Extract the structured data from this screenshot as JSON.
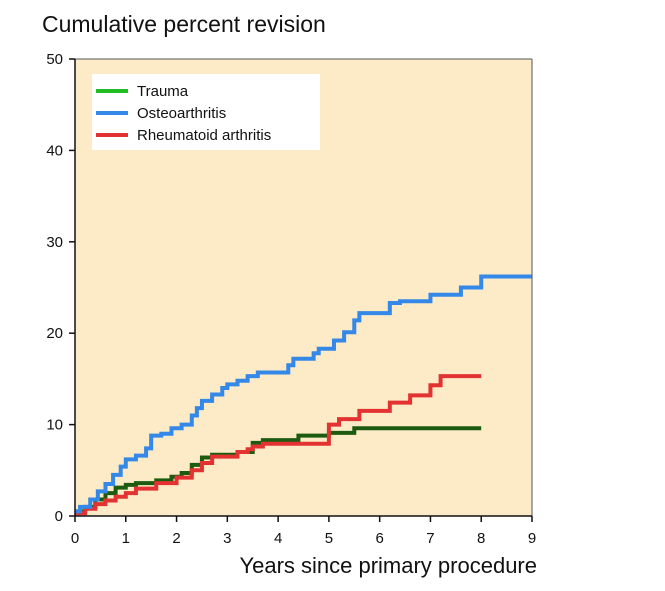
{
  "chart_data": {
    "type": "line",
    "title": "Cumulative percent revision",
    "xlabel": "Years since primary procedure",
    "ylabel": "",
    "xlim": [
      0,
      9
    ],
    "ylim": [
      0,
      50
    ],
    "x_ticks": [
      0,
      1,
      2,
      3,
      4,
      5,
      6,
      7,
      8,
      9
    ],
    "y_ticks": [
      0,
      10,
      20,
      30,
      40,
      50
    ],
    "legend_position": "top-left",
    "plot_background": "#fdebc8",
    "series": [
      {
        "name": "Trauma",
        "color": "#1d5c10",
        "legend_color": "#22bb22",
        "step": true,
        "points": [
          [
            0,
            0.5
          ],
          [
            0.2,
            1.0
          ],
          [
            0.4,
            1.8
          ],
          [
            0.6,
            2.5
          ],
          [
            0.8,
            3.1
          ],
          [
            1.0,
            3.4
          ],
          [
            1.2,
            3.6
          ],
          [
            1.6,
            3.9
          ],
          [
            1.9,
            4.3
          ],
          [
            2.1,
            4.7
          ],
          [
            2.3,
            5.6
          ],
          [
            2.5,
            6.4
          ],
          [
            2.7,
            6.7
          ],
          [
            3.2,
            7.0
          ],
          [
            3.5,
            8.0
          ],
          [
            3.7,
            8.3
          ],
          [
            4.4,
            8.8
          ],
          [
            5.0,
            9.1
          ],
          [
            5.5,
            9.6
          ],
          [
            8.0,
            9.6
          ]
        ]
      },
      {
        "name": "Osteoarthritis",
        "color": "#3388e8",
        "legend_color": "#3388e8",
        "step": true,
        "points": [
          [
            0,
            0.5
          ],
          [
            0.1,
            1.0
          ],
          [
            0.3,
            1.8
          ],
          [
            0.45,
            2.7
          ],
          [
            0.6,
            3.5
          ],
          [
            0.75,
            4.5
          ],
          [
            0.9,
            5.4
          ],
          [
            1.0,
            6.2
          ],
          [
            1.2,
            6.6
          ],
          [
            1.4,
            7.4
          ],
          [
            1.5,
            8.8
          ],
          [
            1.7,
            9.0
          ],
          [
            1.9,
            9.6
          ],
          [
            2.1,
            10.0
          ],
          [
            2.3,
            11.0
          ],
          [
            2.4,
            11.8
          ],
          [
            2.5,
            12.6
          ],
          [
            2.7,
            13.3
          ],
          [
            2.9,
            14.0
          ],
          [
            3.0,
            14.4
          ],
          [
            3.2,
            14.8
          ],
          [
            3.4,
            15.3
          ],
          [
            3.6,
            15.7
          ],
          [
            4.2,
            16.5
          ],
          [
            4.3,
            17.2
          ],
          [
            4.7,
            17.8
          ],
          [
            4.8,
            18.3
          ],
          [
            5.1,
            19.2
          ],
          [
            5.3,
            20.1
          ],
          [
            5.5,
            21.4
          ],
          [
            5.6,
            22.2
          ],
          [
            6.2,
            23.3
          ],
          [
            6.4,
            23.5
          ],
          [
            7.0,
            24.2
          ],
          [
            7.6,
            25.0
          ],
          [
            8.0,
            26.2
          ],
          [
            9.0,
            26.2
          ]
        ]
      },
      {
        "name": "Rheumatoid arthritis",
        "color": "#e23232",
        "legend_color": "#e23232",
        "step": true,
        "points": [
          [
            0,
            0.3
          ],
          [
            0.2,
            0.8
          ],
          [
            0.4,
            1.3
          ],
          [
            0.6,
            1.7
          ],
          [
            0.8,
            2.1
          ],
          [
            1.0,
            2.5
          ],
          [
            1.2,
            3.0
          ],
          [
            1.6,
            3.6
          ],
          [
            2.0,
            4.2
          ],
          [
            2.3,
            5.0
          ],
          [
            2.5,
            5.8
          ],
          [
            2.7,
            6.5
          ],
          [
            3.2,
            7.0
          ],
          [
            3.4,
            7.3
          ],
          [
            3.5,
            7.6
          ],
          [
            3.7,
            7.9
          ],
          [
            5.0,
            10.0
          ],
          [
            5.2,
            10.6
          ],
          [
            5.6,
            11.5
          ],
          [
            6.2,
            12.4
          ],
          [
            6.6,
            13.2
          ],
          [
            7.0,
            14.3
          ],
          [
            7.2,
            15.3
          ],
          [
            8.0,
            15.3
          ]
        ]
      }
    ]
  }
}
